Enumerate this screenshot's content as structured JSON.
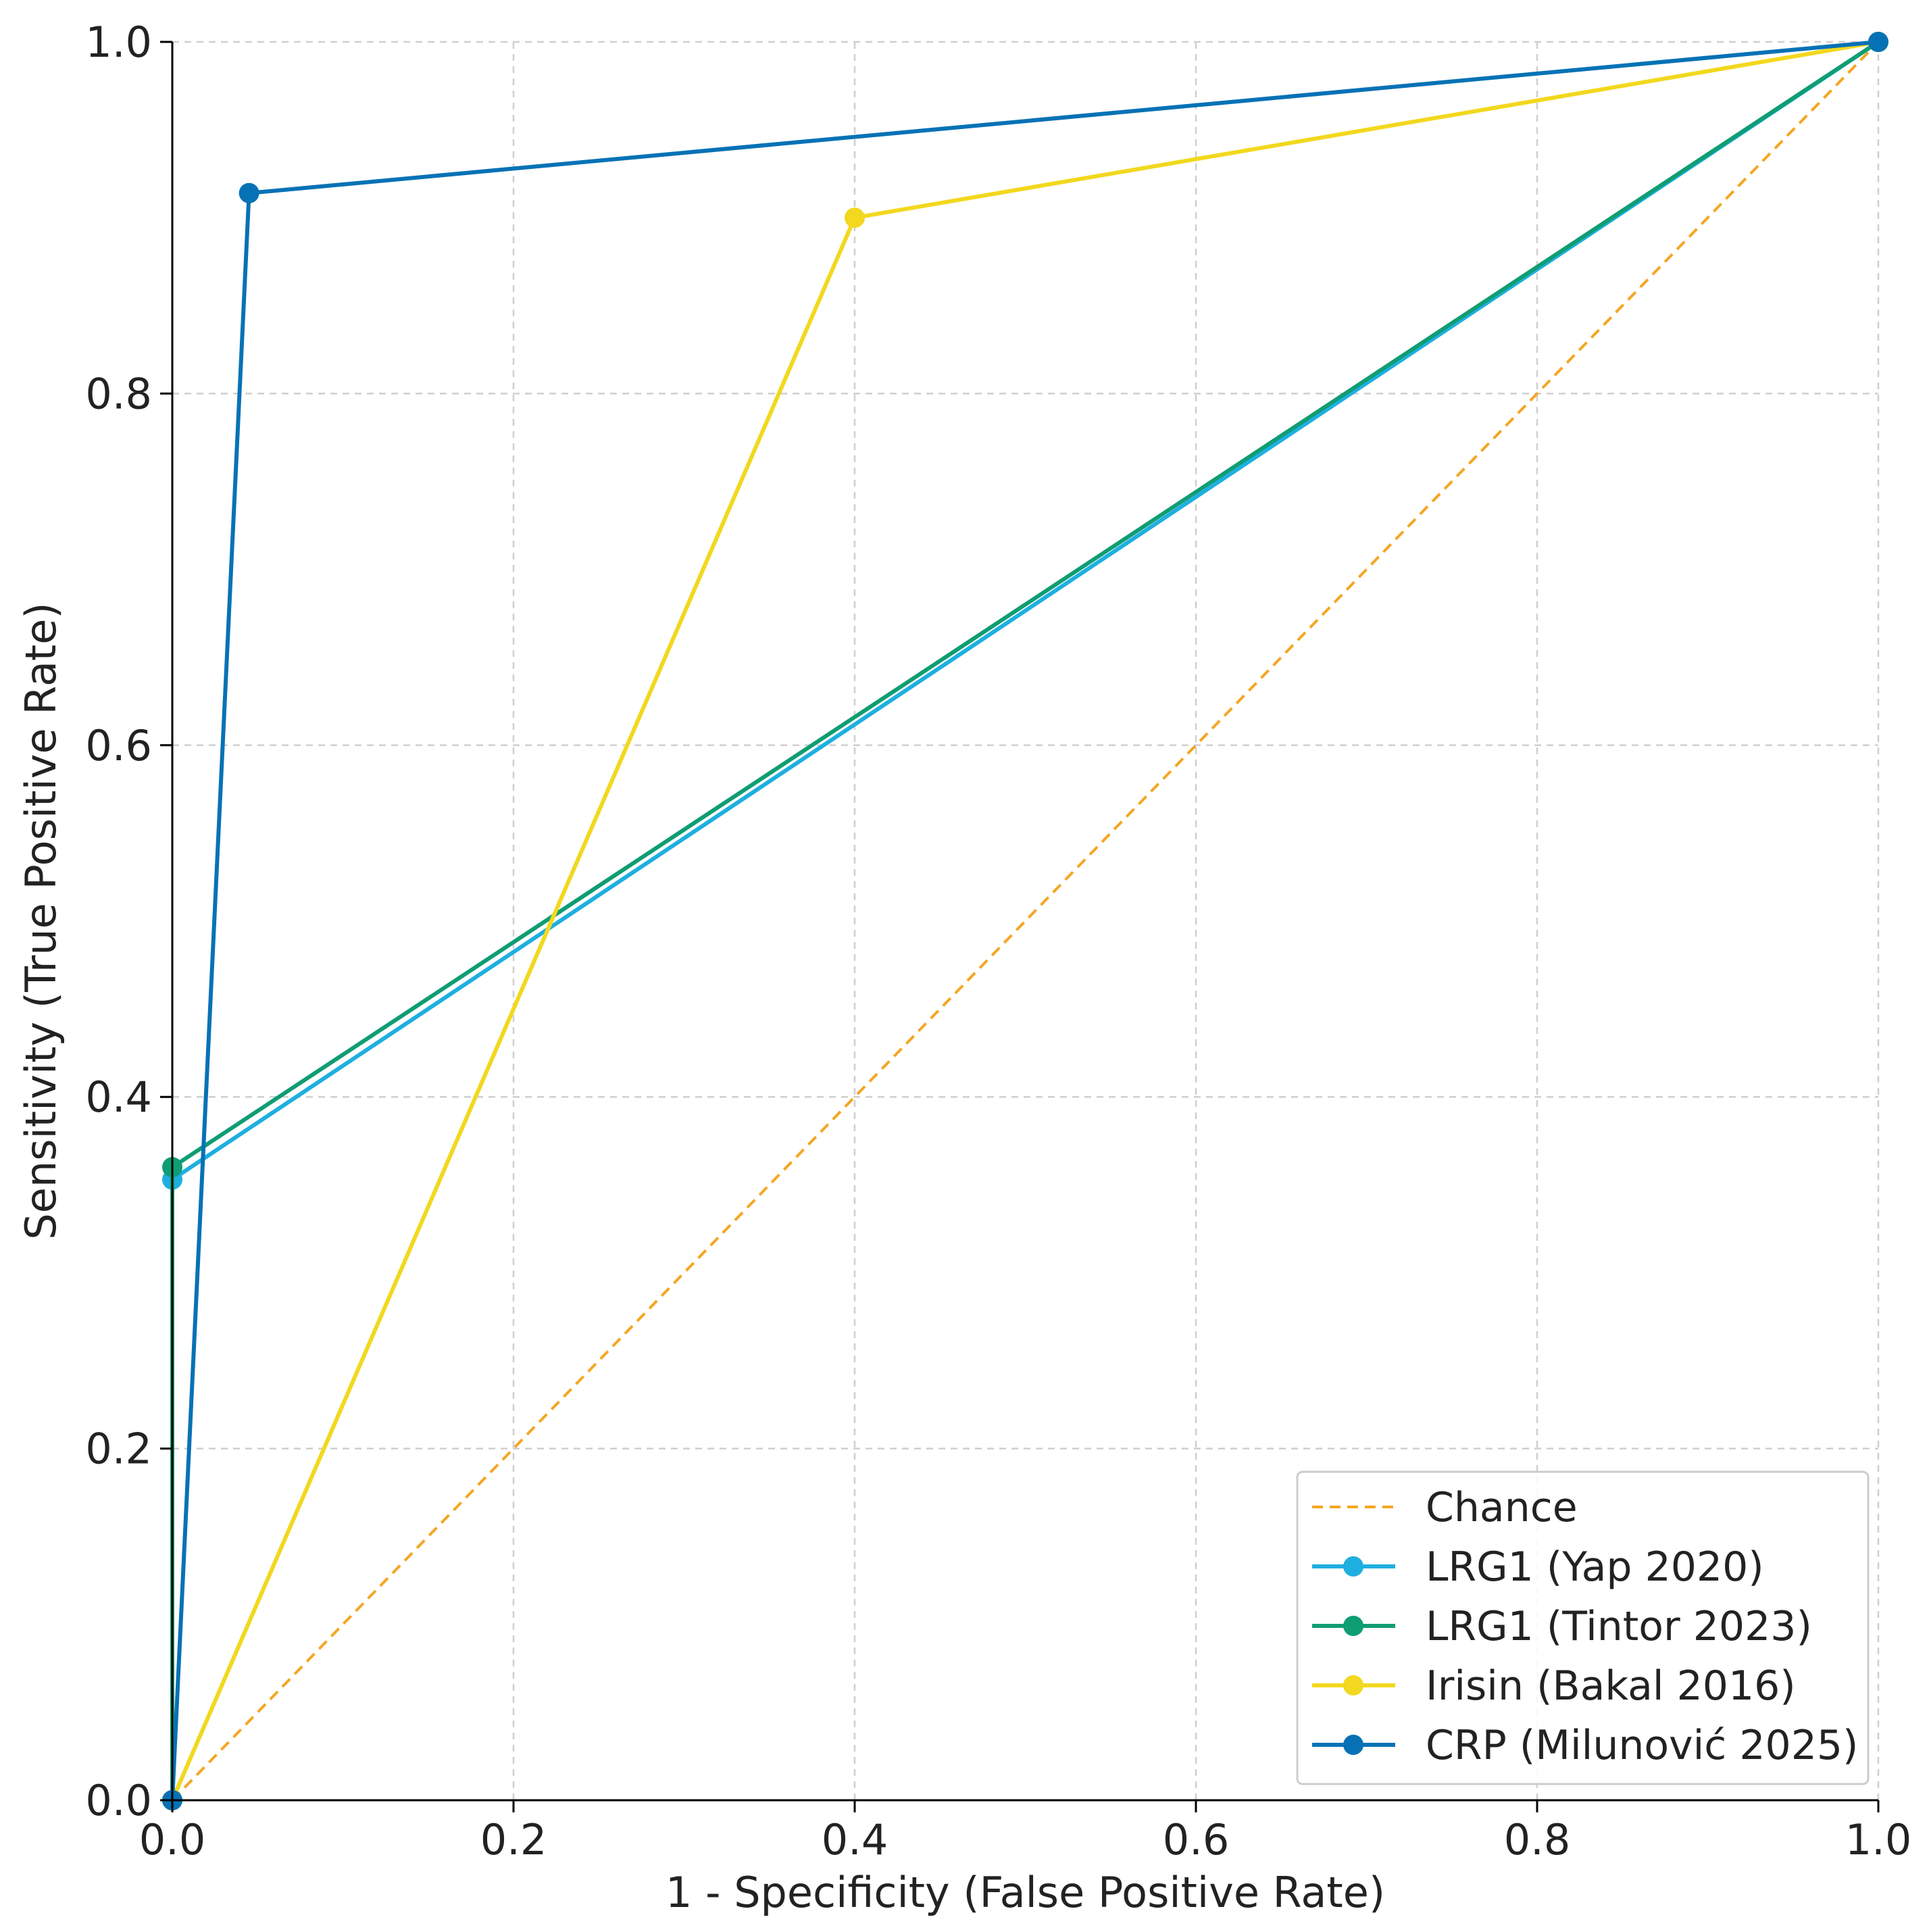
{
  "chart_data": {
    "type": "line",
    "title": "",
    "xlabel": "1 - Specificity (False Positive Rate)",
    "ylabel": "Sensitivity (True Positive Rate)",
    "xlim": [
      0.0,
      1.0
    ],
    "ylim": [
      0.0,
      1.0
    ],
    "xticks": [
      "0.0",
      "0.2",
      "0.4",
      "0.6",
      "0.8",
      "1.0"
    ],
    "yticks": [
      "0.0",
      "0.2",
      "0.4",
      "0.6",
      "0.8",
      "1.0"
    ],
    "grid": true,
    "legend_position": "bottom-right",
    "series": [
      {
        "name": "Chance",
        "color": "#F5A623",
        "style": "dashed",
        "marker": false,
        "x": [
          0.0,
          1.0
        ],
        "y": [
          0.0,
          1.0
        ]
      },
      {
        "name": "LRG1 (Yap 2020)",
        "color": "#1EAFE0",
        "style": "solid",
        "marker": true,
        "x": [
          0.0,
          0.0,
          1.0
        ],
        "y": [
          0.0,
          0.353,
          1.0
        ]
      },
      {
        "name": "LRG1 (Tintor 2023)",
        "color": "#0F9D73",
        "style": "solid",
        "marker": true,
        "x": [
          0.0,
          0.0,
          1.0
        ],
        "y": [
          0.0,
          0.36,
          1.0
        ]
      },
      {
        "name": "Irisin (Bakal 2016)",
        "color": "#F2D81E",
        "style": "solid",
        "marker": true,
        "x": [
          0.0,
          0.4,
          1.0
        ],
        "y": [
          0.0,
          0.9,
          1.0
        ]
      },
      {
        "name": "CRP (Milunović 2025)",
        "color": "#0672B5",
        "style": "solid",
        "marker": true,
        "x": [
          0.0,
          0.045,
          1.0
        ],
        "y": [
          0.0,
          0.914,
          1.0
        ]
      }
    ]
  }
}
